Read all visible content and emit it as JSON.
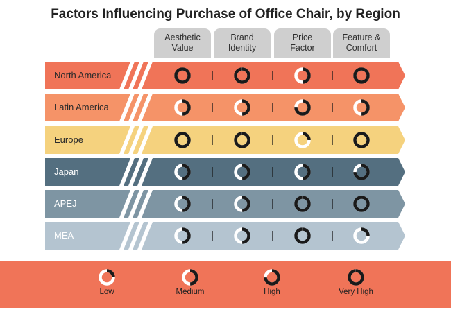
{
  "title": "Factors Influencing Purchase of Office Chair, by Region",
  "colors": {
    "ring_dark": "#1a1a1a",
    "ring_light": "#ffffff",
    "tab_bg": "#cfcfcf",
    "legend_bg": "#f07458",
    "rows": [
      "#f07458",
      "#f59368",
      "#f5d27e",
      "#546f80",
      "#7e95a3",
      "#b4c4d0"
    ]
  },
  "chart_data": {
    "type": "table",
    "title": "Factors Influencing Purchase of Office Chair, by Region",
    "columns": [
      "Aesthetic\nValue",
      "Brand\nIdentity",
      "Price\nFactor",
      "Feature &\nComfort"
    ],
    "rows": [
      "North America",
      "Latin America",
      "Europe",
      "Japan",
      "APEJ",
      "MEA"
    ],
    "scale": [
      "Low",
      "Medium",
      "High",
      "Very High"
    ],
    "values": [
      [
        "Very High",
        "Very High",
        "Medium",
        "Very High"
      ],
      [
        "Medium",
        "Medium",
        "High",
        "Medium"
      ],
      [
        "Very High",
        "Very High",
        "Low",
        "Very High"
      ],
      [
        "Medium",
        "Medium",
        "Medium",
        "High"
      ],
      [
        "Medium",
        "Medium",
        "Very High",
        "Very High"
      ],
      [
        "Medium",
        "Medium",
        "Very High",
        "Low"
      ]
    ],
    "legend_placement": "bottom"
  }
}
